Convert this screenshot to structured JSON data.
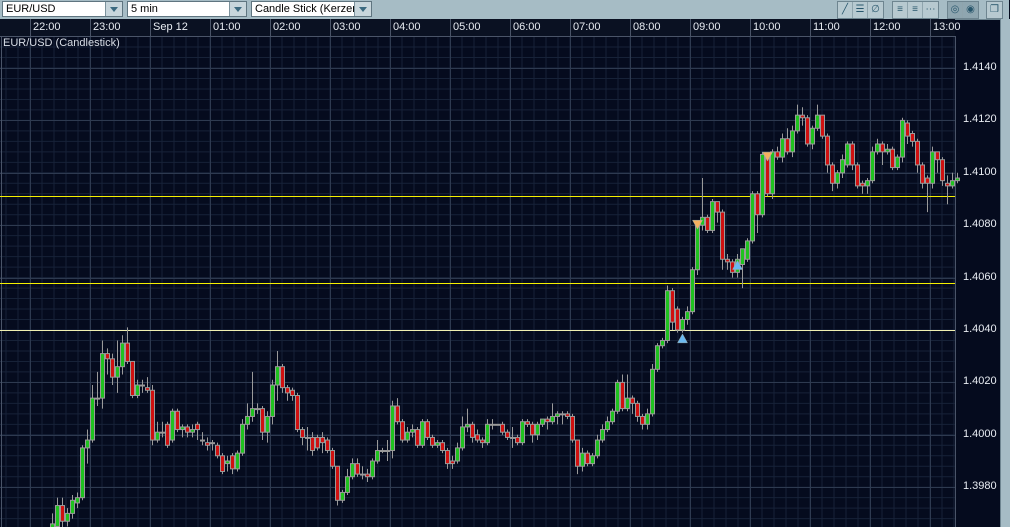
{
  "toolbar": {
    "symbol": "EUR/USD",
    "interval": "5 min",
    "chart_type": "Candle Stick (Kerzen",
    "tools": [
      "trendline-icon",
      "horizontal-line-icon",
      "no-draw-icon",
      "grid-lines-icon",
      "grid-dashed-icon",
      "grid-dotted-icon",
      "theme-light-icon",
      "theme-dark-icon",
      "detach-window-icon"
    ]
  },
  "chart_data": {
    "type": "candlestick",
    "title": "EUR/USD (Candlestick)",
    "x_tick_labels": [
      "22:00",
      "23:00",
      "Sep 12",
      "01:00",
      "02:00",
      "03:00",
      "04:00",
      "05:00",
      "06:00",
      "07:00",
      "08:00",
      "09:00",
      "10:00",
      "11:00",
      "12:00",
      "13:00"
    ],
    "y_tick_labels": [
      "1.4140",
      "1.4120",
      "1.4100",
      "1.4080",
      "1.4060",
      "1.4040",
      "1.4020",
      "1.4000",
      "1.3980"
    ],
    "ylim": [
      1.3964,
      1.415
    ],
    "grid": true,
    "colors": {
      "up": "#1fc21f",
      "down": "#d01010",
      "wick": "#9a9a9a",
      "background": "#050b1e",
      "level_line": "#f5f000",
      "level_line_light": "#f0f0b0",
      "buy_marker": "#6ab8f0",
      "sell_marker": "#f5b060"
    },
    "horizontal_lines": [
      1.4091,
      1.4058,
      1.404
    ],
    "markers": [
      {
        "time": "08:50",
        "price": 1.4037,
        "type": "buy"
      },
      {
        "time": "09:05",
        "price": 1.408,
        "type": "sell"
      },
      {
        "time": "09:45",
        "price": 1.4065,
        "type": "buy"
      },
      {
        "time": "10:15",
        "price": 1.4106,
        "type": "sell"
      }
    ],
    "candles_columns": [
      "time",
      "open",
      "high",
      "low",
      "close"
    ],
    "candles": [
      [
        "22:20",
        1.3962,
        1.397,
        1.3958,
        1.3966
      ],
      [
        "22:25",
        1.3965,
        1.3976,
        1.3963,
        1.3973
      ],
      [
        "22:30",
        1.3973,
        1.3976,
        1.3964,
        1.3967
      ],
      [
        "22:35",
        1.3967,
        1.3972,
        1.3965,
        1.397
      ],
      [
        "22:40",
        1.397,
        1.3977,
        1.3968,
        1.3975
      ],
      [
        "22:45",
        1.3974,
        1.3978,
        1.3972,
        1.3976
      ],
      [
        "22:50",
        1.3976,
        1.3996,
        1.3975,
        1.3995
      ],
      [
        "22:55",
        1.3995,
        1.4002,
        1.3989,
        1.3998
      ],
      [
        "23:00",
        1.3998,
        1.4019,
        1.3997,
        1.4014
      ],
      [
        "23:05",
        1.4014,
        1.4024,
        1.4011,
        1.4014
      ],
      [
        "23:10",
        1.4014,
        1.4036,
        1.401,
        1.4031
      ],
      [
        "23:15",
        1.4031,
        1.4033,
        1.4023,
        1.4029
      ],
      [
        "23:20",
        1.4029,
        1.4031,
        1.4019,
        1.4022
      ],
      [
        "23:25",
        1.4022,
        1.4036,
        1.4016,
        1.4026
      ],
      [
        "23:30",
        1.4026,
        1.4038,
        1.4023,
        1.4035
      ],
      [
        "23:35",
        1.4035,
        1.4041,
        1.4027,
        1.4028
      ],
      [
        "23:40",
        1.4028,
        1.4028,
        1.4014,
        1.4015
      ],
      [
        "23:45",
        1.4015,
        1.4021,
        1.4014,
        1.4019
      ],
      [
        "23:50",
        1.4019,
        1.4021,
        1.4016,
        1.4019
      ],
      [
        "23:55",
        1.4018,
        1.4022,
        1.4016,
        1.4017
      ],
      [
        "00:00",
        1.4017,
        1.4019,
        1.3996,
        1.3998
      ],
      [
        "00:05",
        1.3998,
        1.4005,
        1.3997,
        1.4001
      ],
      [
        "00:10",
        1.4001,
        1.4005,
        1.3999,
        1.4001
      ],
      [
        "00:15",
        1.4004,
        1.4005,
        1.3995,
        1.3996
      ],
      [
        "00:20",
        1.3998,
        1.401,
        1.3997,
        1.4009
      ],
      [
        "00:25",
        1.4009,
        1.401,
        1.4001,
        1.4002
      ],
      [
        "00:30",
        1.4002,
        1.4004,
        1.3999,
        1.4003
      ],
      [
        "00:35",
        1.4003,
        1.4004,
        1.3999,
        1.4001
      ],
      [
        "00:40",
        1.4001,
        1.4004,
        1.3999,
        1.4002
      ],
      [
        "00:45",
        1.4004,
        1.4005,
        1.3998,
        1.4002
      ],
      [
        "00:50",
        1.3998,
        1.4001,
        1.3996,
        1.3998
      ],
      [
        "00:55",
        1.3997,
        1.3999,
        1.3994,
        1.3996
      ],
      [
        "01:00",
        1.3997,
        1.3998,
        1.3994,
        1.3997
      ],
      [
        "01:05",
        1.3996,
        1.3997,
        1.3991,
        1.3992
      ],
      [
        "01:10",
        1.3992,
        1.3993,
        1.3985,
        1.3986
      ],
      [
        "01:15",
        1.3989,
        1.3992,
        1.3986,
        1.399
      ],
      [
        "01:20",
        1.3992,
        1.3993,
        1.3985,
        1.3987
      ],
      [
        "01:25",
        1.3987,
        1.3994,
        1.3986,
        1.3993
      ],
      [
        "01:30",
        1.3993,
        1.4006,
        1.3992,
        1.4004
      ],
      [
        "01:35",
        1.4004,
        1.4012,
        1.4002,
        1.4007
      ],
      [
        "01:40",
        1.4007,
        1.4024,
        1.4005,
        1.401
      ],
      [
        "01:45",
        1.401,
        1.4012,
        1.4008,
        1.401
      ],
      [
        "01:50",
        1.401,
        1.4011,
        1.3998,
        1.4001
      ],
      [
        "01:55",
        1.4001,
        1.4009,
        1.3997,
        1.4007
      ],
      [
        "02:00",
        1.4007,
        1.4021,
        1.4004,
        1.4019
      ],
      [
        "02:05",
        1.4019,
        1.4032,
        1.4013,
        1.4026
      ],
      [
        "02:10",
        1.4026,
        1.4027,
        1.4016,
        1.4018
      ],
      [
        "02:15",
        1.4018,
        1.4019,
        1.4013,
        1.4016
      ],
      [
        "02:20",
        1.4017,
        1.4018,
        1.4013,
        1.4015
      ],
      [
        "02:25",
        1.4015,
        1.4016,
        1.4001,
        1.4002
      ],
      [
        "02:30",
        1.4002,
        1.4003,
        1.3996,
        1.3999
      ],
      [
        "02:35",
        1.3999,
        1.4003,
        1.3994,
        1.3999
      ],
      [
        "02:40",
        1.3999,
        1.4001,
        1.3992,
        1.3994
      ],
      [
        "02:45",
        1.3999,
        1.4,
        1.3994,
        1.3995
      ],
      [
        "02:50",
        1.3999,
        1.4001,
        1.3993,
        1.3997
      ],
      [
        "02:55",
        1.3998,
        1.3999,
        1.3993,
        1.3994
      ],
      [
        "03:00",
        1.3994,
        1.3995,
        1.3987,
        1.3988
      ],
      [
        "03:05",
        1.3988,
        1.3988,
        1.3973,
        1.3975
      ],
      [
        "03:10",
        1.3975,
        1.3979,
        1.3974,
        1.3978
      ],
      [
        "03:15",
        1.3978,
        1.3987,
        1.3977,
        1.3984
      ],
      [
        "03:20",
        1.3984,
        1.3991,
        1.3983,
        1.3989
      ],
      [
        "03:25",
        1.3989,
        1.3991,
        1.3984,
        1.3985
      ],
      [
        "03:30",
        1.3985,
        1.3988,
        1.3983,
        1.3985
      ],
      [
        "03:35",
        1.3985,
        1.3987,
        1.3982,
        1.3984
      ],
      [
        "03:40",
        1.3984,
        1.3991,
        1.3983,
        1.399
      ],
      [
        "03:45",
        1.399,
        1.3998,
        1.3989,
        1.3994
      ],
      [
        "03:50",
        1.3994,
        1.3995,
        1.3993,
        1.3994
      ],
      [
        "03:55",
        1.3994,
        1.3998,
        1.399,
        1.3994
      ],
      [
        "04:00",
        1.3994,
        1.4013,
        1.3991,
        1.4011
      ],
      [
        "04:05",
        1.4011,
        1.4014,
        1.4004,
        1.4005
      ],
      [
        "04:10",
        1.4005,
        1.4006,
        1.3997,
        1.3998
      ],
      [
        "04:15",
        1.3998,
        1.4003,
        1.3997,
        1.4001
      ],
      [
        "04:20",
        1.4001,
        1.4004,
        1.3999,
        1.4002
      ],
      [
        "04:25",
        1.4002,
        1.4003,
        1.3995,
        1.3996
      ],
      [
        "04:30",
        1.3996,
        1.4006,
        1.3995,
        1.4005
      ],
      [
        "04:35",
        1.4005,
        1.4006,
        1.3998,
        1.3999
      ],
      [
        "04:40",
        1.3999,
        1.4,
        1.3995,
        1.3996
      ],
      [
        "04:45",
        1.3996,
        1.3998,
        1.3995,
        1.3997
      ],
      [
        "04:50",
        1.3997,
        1.3998,
        1.3993,
        1.3994
      ],
      [
        "04:55",
        1.3994,
        1.3995,
        1.3987,
        1.3989
      ],
      [
        "05:00",
        1.399,
        1.3992,
        1.3987,
        1.3989
      ],
      [
        "05:05",
        1.399,
        1.3997,
        1.3989,
        1.3995
      ],
      [
        "05:10",
        1.3995,
        1.4007,
        1.3994,
        1.4003
      ],
      [
        "05:15",
        1.4003,
        1.401,
        1.4001,
        1.4004
      ],
      [
        "05:20",
        1.4004,
        1.4005,
        1.3997,
        1.3999
      ],
      [
        "05:25",
        1.4,
        1.4002,
        1.3997,
        1.3998
      ],
      [
        "05:30",
        1.3998,
        1.3999,
        1.3995,
        1.3997
      ],
      [
        "05:35",
        1.3997,
        1.4006,
        1.3996,
        1.4004
      ],
      [
        "05:40",
        1.4004,
        1.4006,
        1.4002,
        1.4004
      ],
      [
        "05:45",
        1.4004,
        1.4004,
        1.4004,
        1.4004
      ],
      [
        "05:50",
        1.4004,
        1.4005,
        1.4,
        1.4001
      ],
      [
        "05:55",
        1.4001,
        1.4002,
        1.3998,
        1.3999
      ],
      [
        "06:00",
        1.3999,
        1.4003,
        1.3995,
        1.3999
      ],
      [
        "06:05",
        1.3999,
        1.4,
        1.3996,
        1.3997
      ],
      [
        "06:10",
        1.3997,
        1.4006,
        1.3996,
        1.4005
      ],
      [
        "06:15",
        1.4005,
        1.4006,
        1.4003,
        1.4004
      ],
      [
        "06:20",
        1.4004,
        1.4005,
        1.3997,
        1.4
      ],
      [
        "06:25",
        1.4,
        1.4005,
        1.3998,
        1.4004
      ],
      [
        "06:30",
        1.4004,
        1.4006,
        1.4003,
        1.4006
      ],
      [
        "06:35",
        1.4006,
        1.4007,
        1.4002,
        1.4005
      ],
      [
        "06:40",
        1.4005,
        1.4012,
        1.4004,
        1.4007
      ],
      [
        "06:45",
        1.4007,
        1.4009,
        1.4004,
        1.4008
      ],
      [
        "06:50",
        1.4008,
        1.4009,
        1.4004,
        1.4008
      ],
      [
        "06:55",
        1.4008,
        1.4009,
        1.4006,
        1.4007
      ],
      [
        "07:00",
        1.4007,
        1.4008,
        1.3997,
        1.3998
      ],
      [
        "07:05",
        1.3998,
        1.3998,
        1.3985,
        1.3988
      ],
      [
        "07:10",
        1.3988,
        1.3995,
        1.3986,
        1.3993
      ],
      [
        "07:15",
        1.3993,
        1.3994,
        1.3988,
        1.3989
      ],
      [
        "07:20",
        1.3989,
        1.3993,
        1.3988,
        1.3992
      ],
      [
        "07:25",
        1.3992,
        1.4,
        1.3991,
        1.3998
      ],
      [
        "07:30",
        1.3998,
        1.4004,
        1.3997,
        1.4002
      ],
      [
        "07:35",
        1.4002,
        1.4007,
        1.4001,
        1.4005
      ],
      [
        "07:40",
        1.4005,
        1.401,
        1.4004,
        1.4009
      ],
      [
        "07:45",
        1.4009,
        1.4021,
        1.4008,
        1.402
      ],
      [
        "07:50",
        1.402,
        1.4023,
        1.4009,
        1.401
      ],
      [
        "07:55",
        1.401,
        1.4023,
        1.4009,
        1.4014
      ],
      [
        "08:00",
        1.4014,
        1.4015,
        1.4008,
        1.4012
      ],
      [
        "08:05",
        1.4012,
        1.4013,
        1.4005,
        1.4007
      ],
      [
        "08:10",
        1.4007,
        1.4008,
        1.4002,
        1.4004
      ],
      [
        "08:15",
        1.4004,
        1.401,
        1.4002,
        1.4008
      ],
      [
        "08:20",
        1.4008,
        1.4027,
        1.4007,
        1.4025
      ],
      [
        "08:25",
        1.4025,
        1.4035,
        1.4024,
        1.4034
      ],
      [
        "08:30",
        1.4034,
        1.4037,
        1.4033,
        1.4036
      ],
      [
        "08:35",
        1.4036,
        1.4057,
        1.4035,
        1.4055
      ],
      [
        "08:40",
        1.4055,
        1.4056,
        1.404,
        1.4043
      ],
      [
        "08:45",
        1.4048,
        1.4049,
        1.4039,
        1.404
      ],
      [
        "08:50",
        1.404,
        1.4045,
        1.4039,
        1.4044
      ],
      [
        "08:55",
        1.4044,
        1.4049,
        1.4042,
        1.4047
      ],
      [
        "09:00",
        1.4047,
        1.4064,
        1.4046,
        1.4063
      ],
      [
        "09:05",
        1.4063,
        1.4081,
        1.4061,
        1.408
      ],
      [
        "09:10",
        1.408,
        1.4098,
        1.4078,
        1.4083
      ],
      [
        "09:15",
        1.4083,
        1.4084,
        1.4077,
        1.4078
      ],
      [
        "09:20",
        1.4078,
        1.409,
        1.4077,
        1.4089
      ],
      [
        "09:25",
        1.4089,
        1.4089,
        1.4081,
        1.4085
      ],
      [
        "09:30",
        1.4085,
        1.4086,
        1.4063,
        1.4067
      ],
      [
        "09:35",
        1.4067,
        1.4069,
        1.4063,
        1.4066
      ],
      [
        "09:40",
        1.4066,
        1.4067,
        1.406,
        1.4062
      ],
      [
        "09:45",
        1.4062,
        1.4069,
        1.406,
        1.4067
      ],
      [
        "09:50",
        1.4065,
        1.4071,
        1.4056,
        1.4071
      ],
      [
        "09:55",
        1.4067,
        1.4075,
        1.4066,
        1.4074
      ],
      [
        "10:00",
        1.4074,
        1.4093,
        1.4073,
        1.4092
      ],
      [
        "10:05",
        1.4092,
        1.4093,
        1.4077,
        1.4084
      ],
      [
        "10:10",
        1.4084,
        1.4108,
        1.4083,
        1.4107
      ],
      [
        "10:15",
        1.4106,
        1.4107,
        1.4091,
        1.4092
      ],
      [
        "10:20",
        1.4092,
        1.4109,
        1.409,
        1.4108
      ],
      [
        "10:25",
        1.4108,
        1.411,
        1.4105,
        1.4106
      ],
      [
        "10:30",
        1.4106,
        1.4115,
        1.4104,
        1.4113
      ],
      [
        "10:35",
        1.4113,
        1.4117,
        1.4107,
        1.4108
      ],
      [
        "10:40",
        1.4108,
        1.4118,
        1.4106,
        1.4116
      ],
      [
        "10:45",
        1.4116,
        1.4126,
        1.4115,
        1.4122
      ],
      [
        "10:50",
        1.4122,
        1.4125,
        1.4118,
        1.4121
      ],
      [
        "10:55",
        1.4121,
        1.4122,
        1.411,
        1.4111
      ],
      [
        "11:00",
        1.4111,
        1.4118,
        1.4109,
        1.4117
      ],
      [
        "11:05",
        1.4117,
        1.4126,
        1.4116,
        1.4122
      ],
      [
        "11:10",
        1.4122,
        1.4122,
        1.4113,
        1.4114
      ],
      [
        "11:15",
        1.4114,
        1.4115,
        1.41,
        1.4103
      ],
      [
        "11:20",
        1.4103,
        1.4104,
        1.4093,
        1.4096
      ],
      [
        "11:25",
        1.4096,
        1.4101,
        1.4094,
        1.41
      ],
      [
        "11:30",
        1.41,
        1.4107,
        1.4098,
        1.4105
      ],
      [
        "11:35",
        1.4103,
        1.4112,
        1.4102,
        1.4111
      ],
      [
        "11:40",
        1.4111,
        1.4112,
        1.4101,
        1.4103
      ],
      [
        "11:45",
        1.4103,
        1.4104,
        1.4094,
        1.4095
      ],
      [
        "11:50",
        1.4096,
        1.4097,
        1.4092,
        1.4095
      ],
      [
        "11:55",
        1.4095,
        1.4098,
        1.4092,
        1.4097
      ],
      [
        "12:00",
        1.4097,
        1.411,
        1.4096,
        1.4108
      ],
      [
        "12:05",
        1.4108,
        1.4113,
        1.4107,
        1.4111
      ],
      [
        "12:10",
        1.4111,
        1.4112,
        1.4103,
        1.4108
      ],
      [
        "12:15",
        1.4108,
        1.4111,
        1.4107,
        1.4109
      ],
      [
        "12:20",
        1.4109,
        1.411,
        1.4101,
        1.4102
      ],
      [
        "12:25",
        1.4102,
        1.4107,
        1.4101,
        1.4106
      ],
      [
        "12:30",
        1.4106,
        1.4121,
        1.4104,
        1.412
      ],
      [
        "12:35",
        1.4119,
        1.412,
        1.4111,
        1.4114
      ],
      [
        "12:40",
        1.4115,
        1.4116,
        1.411,
        1.4112
      ],
      [
        "12:45",
        1.4112,
        1.4113,
        1.41,
        1.4103
      ],
      [
        "12:50",
        1.4103,
        1.4104,
        1.4094,
        1.4096
      ],
      [
        "12:55",
        1.4098,
        1.4099,
        1.4085,
        1.4096
      ],
      [
        "13:00",
        1.4096,
        1.411,
        1.4094,
        1.4108
      ],
      [
        "13:05",
        1.4108,
        1.4108,
        1.41,
        1.4105
      ],
      [
        "13:10",
        1.4105,
        1.4106,
        1.4095,
        1.4097
      ],
      [
        "13:15",
        1.4096,
        1.4099,
        1.4088,
        1.4095
      ],
      [
        "13:20",
        1.4095,
        1.41,
        1.4094,
        1.4097
      ],
      [
        "13:25",
        1.4097,
        1.41,
        1.4096,
        1.4098
      ]
    ]
  }
}
